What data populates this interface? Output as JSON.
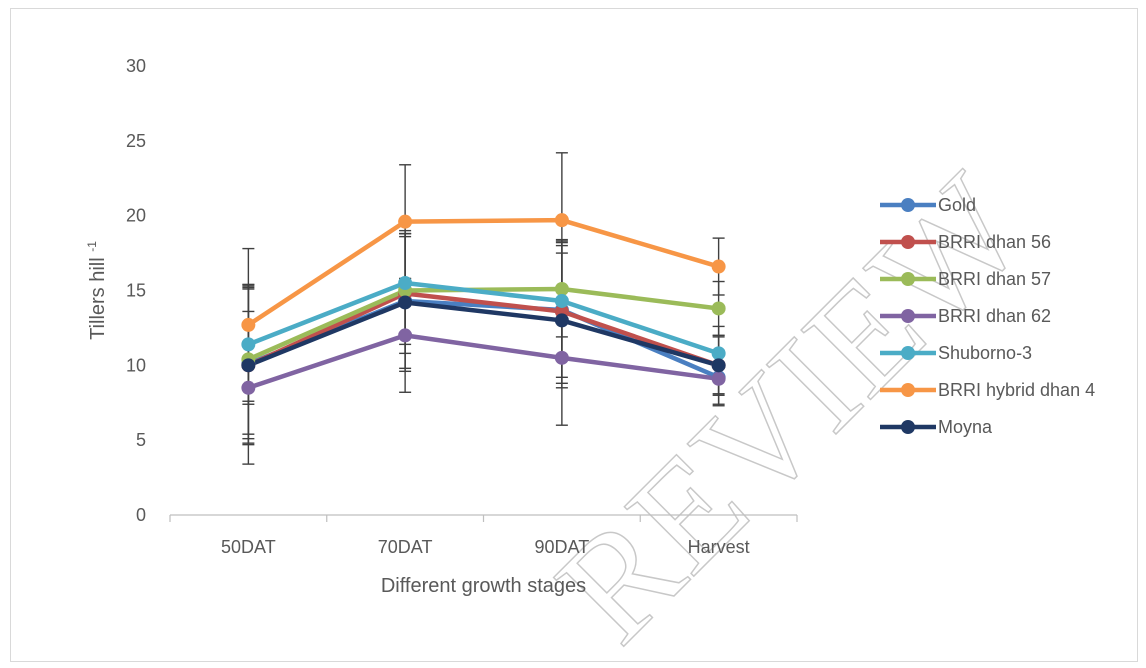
{
  "chart_data": {
    "type": "line",
    "categories": [
      "50DAT",
      "70DAT",
      "90DAT",
      "Harvest"
    ],
    "xlabel": "Different growth stages",
    "ylabel_main": "Tillers hill",
    "ylabel_sup": "-1",
    "ylim": [
      0,
      30
    ],
    "yticks": [
      0,
      5,
      10,
      15,
      20,
      25,
      30
    ],
    "grid": false,
    "legend_position": "right",
    "series": [
      {
        "name": "Gold",
        "color": "#4a7fc1",
        "values": [
          10.1,
          14.3,
          13.7,
          9.2
        ],
        "err": [
          5.0,
          4.5,
          4.5,
          1.8
        ]
      },
      {
        "name": "BRRI dhan 56",
        "color": "#c0504d",
        "values": [
          10.0,
          14.8,
          13.6,
          10.0
        ],
        "err": [
          5.2,
          4.0,
          4.8,
          1.9
        ]
      },
      {
        "name": "BRRI dhan 57",
        "color": "#9bbb59",
        "values": [
          10.4,
          15.0,
          15.1,
          13.8
        ],
        "err": [
          5.0,
          3.6,
          3.2,
          1.8
        ]
      },
      {
        "name": "BRRI dhan 62",
        "color": "#8064a2",
        "values": [
          8.5,
          12.0,
          10.5,
          9.1
        ],
        "err": [
          5.1,
          3.8,
          4.5,
          1.8
        ]
      },
      {
        "name": "Shuborno-3",
        "color": "#4bacc6",
        "values": [
          11.4,
          15.5,
          14.3,
          10.8
        ],
        "err": [
          4.0,
          3.5,
          3.7,
          1.8
        ]
      },
      {
        "name": "BRRI hybrid dhan 4",
        "color": "#f79646",
        "values": [
          12.7,
          19.6,
          19.7,
          16.6
        ],
        "err": [
          5.1,
          3.8,
          4.5,
          1.9
        ]
      },
      {
        "name": "Moyna",
        "color": "#1f3864",
        "values": [
          10.0,
          14.2,
          13.0,
          10.0
        ],
        "err": [
          5.3,
          4.6,
          4.5,
          2.0
        ]
      }
    ]
  },
  "watermark_text": "REVIEW"
}
